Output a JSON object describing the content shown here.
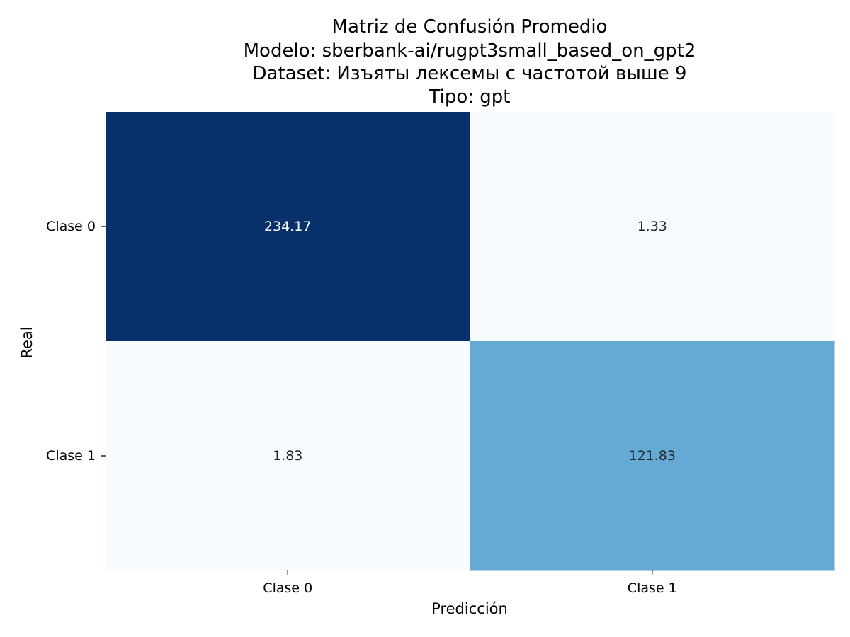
{
  "chart_data": {
    "type": "heatmap",
    "title_lines": [
      "Matriz de Confusión Promedio",
      "Modelo: sberbank-ai/rugpt3small_based_on_gpt2",
      "Dataset: Изъяты лексемы с частотой выше 9",
      "Tipo: gpt"
    ],
    "xlabel": "Predicción",
    "ylabel": "Real",
    "x_categories": [
      "Clase 0",
      "Clase 1"
    ],
    "y_categories": [
      "Clase 0",
      "Clase 1"
    ],
    "values": [
      [
        234.17,
        1.33
      ],
      [
        1.83,
        121.83
      ]
    ],
    "value_labels": [
      [
        "234.17",
        "1.33"
      ],
      [
        "1.83",
        "121.83"
      ]
    ],
    "colormap": "Blues",
    "colorbar": false,
    "grid": false,
    "colors": {
      "min": "#f7fbff",
      "max": "#08306b",
      "text_dark": "#262626",
      "text_light": "#ffffff"
    }
  }
}
